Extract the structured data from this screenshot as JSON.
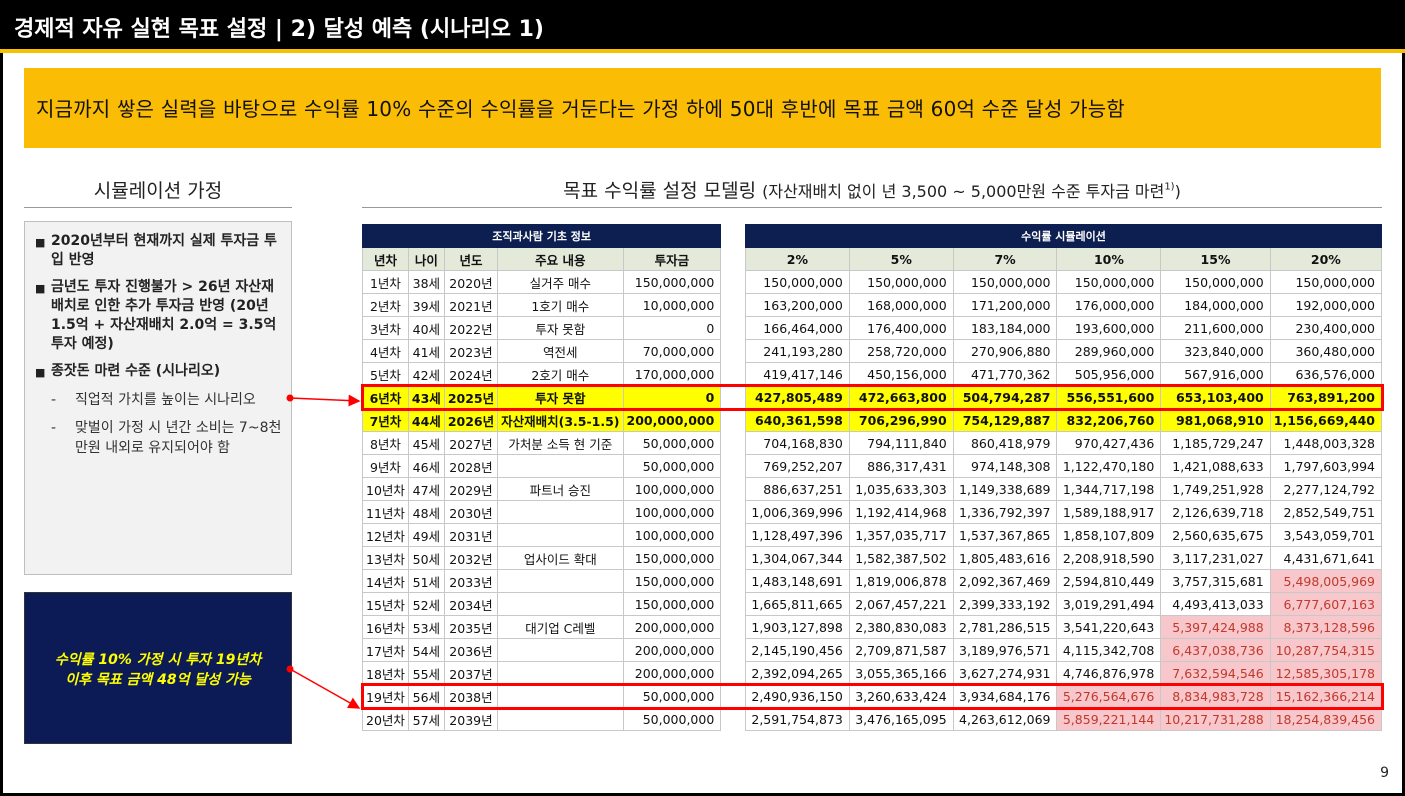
{
  "title": "경제적 자유 실현 목표 설정 | 2) 달성 예측 (시나리오 1)",
  "banner": "지금까지 쌓은 실력을 바탕으로 수익률 10% 수준의 수익률을 거둔다는 가정 하에 50대 후반에 목표 금액 60억 수준 달성 가능함",
  "left": {
    "heading": "시뮬레이션 가정",
    "bullets": [
      "2020년부터 현재까지 실제 투자금 투입 반영",
      "금년도 투자 진행불가 > 26년 자산재배치로 인한 추가 투자금 반영 (20년 1.5억 + 자산재배치 2.0억 = 3.5억 투자 예정)",
      "종잣돈 마련 수준 (시나리오)"
    ],
    "subs": [
      "직업적 가치를 높이는 시나리오",
      "맞벌이 가정 시 년간 소비는 7~8천만원 내외로 유지되어야 함"
    ],
    "bullet_symbol": "■",
    "dash_symbol": "-"
  },
  "callout": {
    "line1": "수익률 10% 가정 시 투자 19년차",
    "line2": "이후 목표 금액 48억 달성 가능"
  },
  "right_heading": {
    "main": "목표 수익률 설정 모델링",
    "sub": "(자산재배치 없이 년 3,500 ~ 5,000만원 수준 투자금 마련",
    "sup": "1)",
    "close": ")"
  },
  "info_table": {
    "group_header": "조직과사람 기초 정보",
    "columns": [
      "년차",
      "나이",
      "년도",
      "주요 내용",
      "투자금"
    ],
    "rows": [
      [
        "1년차",
        "38세",
        "2020년",
        "실거주 매수",
        "150,000,000"
      ],
      [
        "2년차",
        "39세",
        "2021년",
        "1호기 매수",
        "10,000,000"
      ],
      [
        "3년차",
        "40세",
        "2022년",
        "투자 못함",
        "0"
      ],
      [
        "4년차",
        "41세",
        "2023년",
        "역전세",
        "70,000,000"
      ],
      [
        "5년차",
        "42세",
        "2024년",
        "2호기 매수",
        "170,000,000"
      ],
      [
        "6년차",
        "43세",
        "2025년",
        "투자 못함",
        "0"
      ],
      [
        "7년차",
        "44세",
        "2026년",
        "자산재배치(3.5-1.5)",
        "200,000,000"
      ],
      [
        "8년차",
        "45세",
        "2027년",
        "가처분 소득 현 기준",
        "50,000,000"
      ],
      [
        "9년차",
        "46세",
        "2028년",
        "",
        "50,000,000"
      ],
      [
        "10년차",
        "47세",
        "2029년",
        "파트너 승진",
        "100,000,000"
      ],
      [
        "11년차",
        "48세",
        "2030년",
        "",
        "100,000,000"
      ],
      [
        "12년차",
        "49세",
        "2031년",
        "",
        "100,000,000"
      ],
      [
        "13년차",
        "50세",
        "2032년",
        "업사이드 확대",
        "150,000,000"
      ],
      [
        "14년차",
        "51세",
        "2033년",
        "",
        "150,000,000"
      ],
      [
        "15년차",
        "52세",
        "2034년",
        "",
        "150,000,000"
      ],
      [
        "16년차",
        "53세",
        "2035년",
        "대기업 C레벨",
        "200,000,000"
      ],
      [
        "17년차",
        "54세",
        "2036년",
        "",
        "200,000,000"
      ],
      [
        "18년차",
        "55세",
        "2037년",
        "",
        "200,000,000"
      ],
      [
        "19년차",
        "56세",
        "2038년",
        "",
        "50,000,000"
      ],
      [
        "20년차",
        "57세",
        "2039년",
        "",
        "50,000,000"
      ]
    ]
  },
  "sim_table": {
    "group_header": "수익률 시뮬레이션",
    "columns": [
      "2%",
      "5%",
      "7%",
      "10%",
      "15%",
      "20%"
    ],
    "rows": [
      [
        "150,000,000",
        "150,000,000",
        "150,000,000",
        "150,000,000",
        "150,000,000",
        "150,000,000"
      ],
      [
        "163,200,000",
        "168,000,000",
        "171,200,000",
        "176,000,000",
        "184,000,000",
        "192,000,000"
      ],
      [
        "166,464,000",
        "176,400,000",
        "183,184,000",
        "193,600,000",
        "211,600,000",
        "230,400,000"
      ],
      [
        "241,193,280",
        "258,720,000",
        "270,906,880",
        "289,960,000",
        "323,840,000",
        "360,480,000"
      ],
      [
        "419,417,146",
        "450,156,000",
        "471,770,362",
        "505,956,000",
        "567,916,000",
        "636,576,000"
      ],
      [
        "427,805,489",
        "472,663,800",
        "504,794,287",
        "556,551,600",
        "653,103,400",
        "763,891,200"
      ],
      [
        "640,361,598",
        "706,296,990",
        "754,129,887",
        "832,206,760",
        "981,068,910",
        "1,156,669,440"
      ],
      [
        "704,168,830",
        "794,111,840",
        "860,418,979",
        "970,427,436",
        "1,185,729,247",
        "1,448,003,328"
      ],
      [
        "769,252,207",
        "886,317,431",
        "974,148,308",
        "1,122,470,180",
        "1,421,088,633",
        "1,797,603,994"
      ],
      [
        "886,637,251",
        "1,035,633,303",
        "1,149,338,689",
        "1,344,717,198",
        "1,749,251,928",
        "2,277,124,792"
      ],
      [
        "1,006,369,996",
        "1,192,414,968",
        "1,336,792,397",
        "1,589,188,917",
        "2,126,639,718",
        "2,852,549,751"
      ],
      [
        "1,128,497,396",
        "1,357,035,717",
        "1,537,367,865",
        "1,858,107,809",
        "2,560,635,675",
        "3,543,059,701"
      ],
      [
        "1,304,067,344",
        "1,582,387,502",
        "1,805,483,616",
        "2,208,918,590",
        "3,117,231,027",
        "4,431,671,641"
      ],
      [
        "1,483,148,691",
        "1,819,006,878",
        "2,092,367,469",
        "2,594,810,449",
        "3,757,315,681",
        "5,498,005,969"
      ],
      [
        "1,665,811,665",
        "2,067,457,221",
        "2,399,333,192",
        "3,019,291,494",
        "4,493,413,033",
        "6,777,607,163"
      ],
      [
        "1,903,127,898",
        "2,380,830,083",
        "2,781,286,515",
        "3,541,220,643",
        "5,397,424,988",
        "8,373,128,596"
      ],
      [
        "2,145,190,456",
        "2,709,871,587",
        "3,189,976,571",
        "4,115,342,708",
        "6,437,038,736",
        "10,287,754,315"
      ],
      [
        "2,392,094,265",
        "3,055,365,166",
        "3,627,274,931",
        "4,746,876,978",
        "7,632,594,546",
        "12,585,305,178"
      ],
      [
        "2,490,936,150",
        "3,260,633,424",
        "3,934,684,176",
        "5,276,564,676",
        "8,834,983,728",
        "15,162,366,214"
      ],
      [
        "2,591,754,873",
        "3,476,165,095",
        "4,263,612,069",
        "5,859,221,144",
        "10,217,731,288",
        "18,254,839,456"
      ]
    ],
    "pink_cells": [
      [
        13,
        5
      ],
      [
        14,
        5
      ],
      [
        15,
        4
      ],
      [
        15,
        5
      ],
      [
        16,
        4
      ],
      [
        16,
        5
      ],
      [
        17,
        4
      ],
      [
        17,
        5
      ],
      [
        18,
        3
      ],
      [
        18,
        4
      ],
      [
        18,
        5
      ],
      [
        19,
        3
      ],
      [
        19,
        4
      ],
      [
        19,
        5
      ]
    ],
    "yellow_rows": [
      5,
      6
    ],
    "highlight_rows": [
      5,
      18
    ]
  },
  "page_number": "9",
  "colors": {
    "title_bg": "#000000",
    "banner_bg": "#fbbc06",
    "table_header_bg": "#0c1f50",
    "column_header_bg": "#e4ead9",
    "highlight_yellow": "#ffff00",
    "pink_cell_bg": "#f7c7cc",
    "pink_cell_text": "#c0392b",
    "highlight_border": "#ff0000",
    "callout_bg": "#0c1a55",
    "callout_text": "#ffff00"
  }
}
